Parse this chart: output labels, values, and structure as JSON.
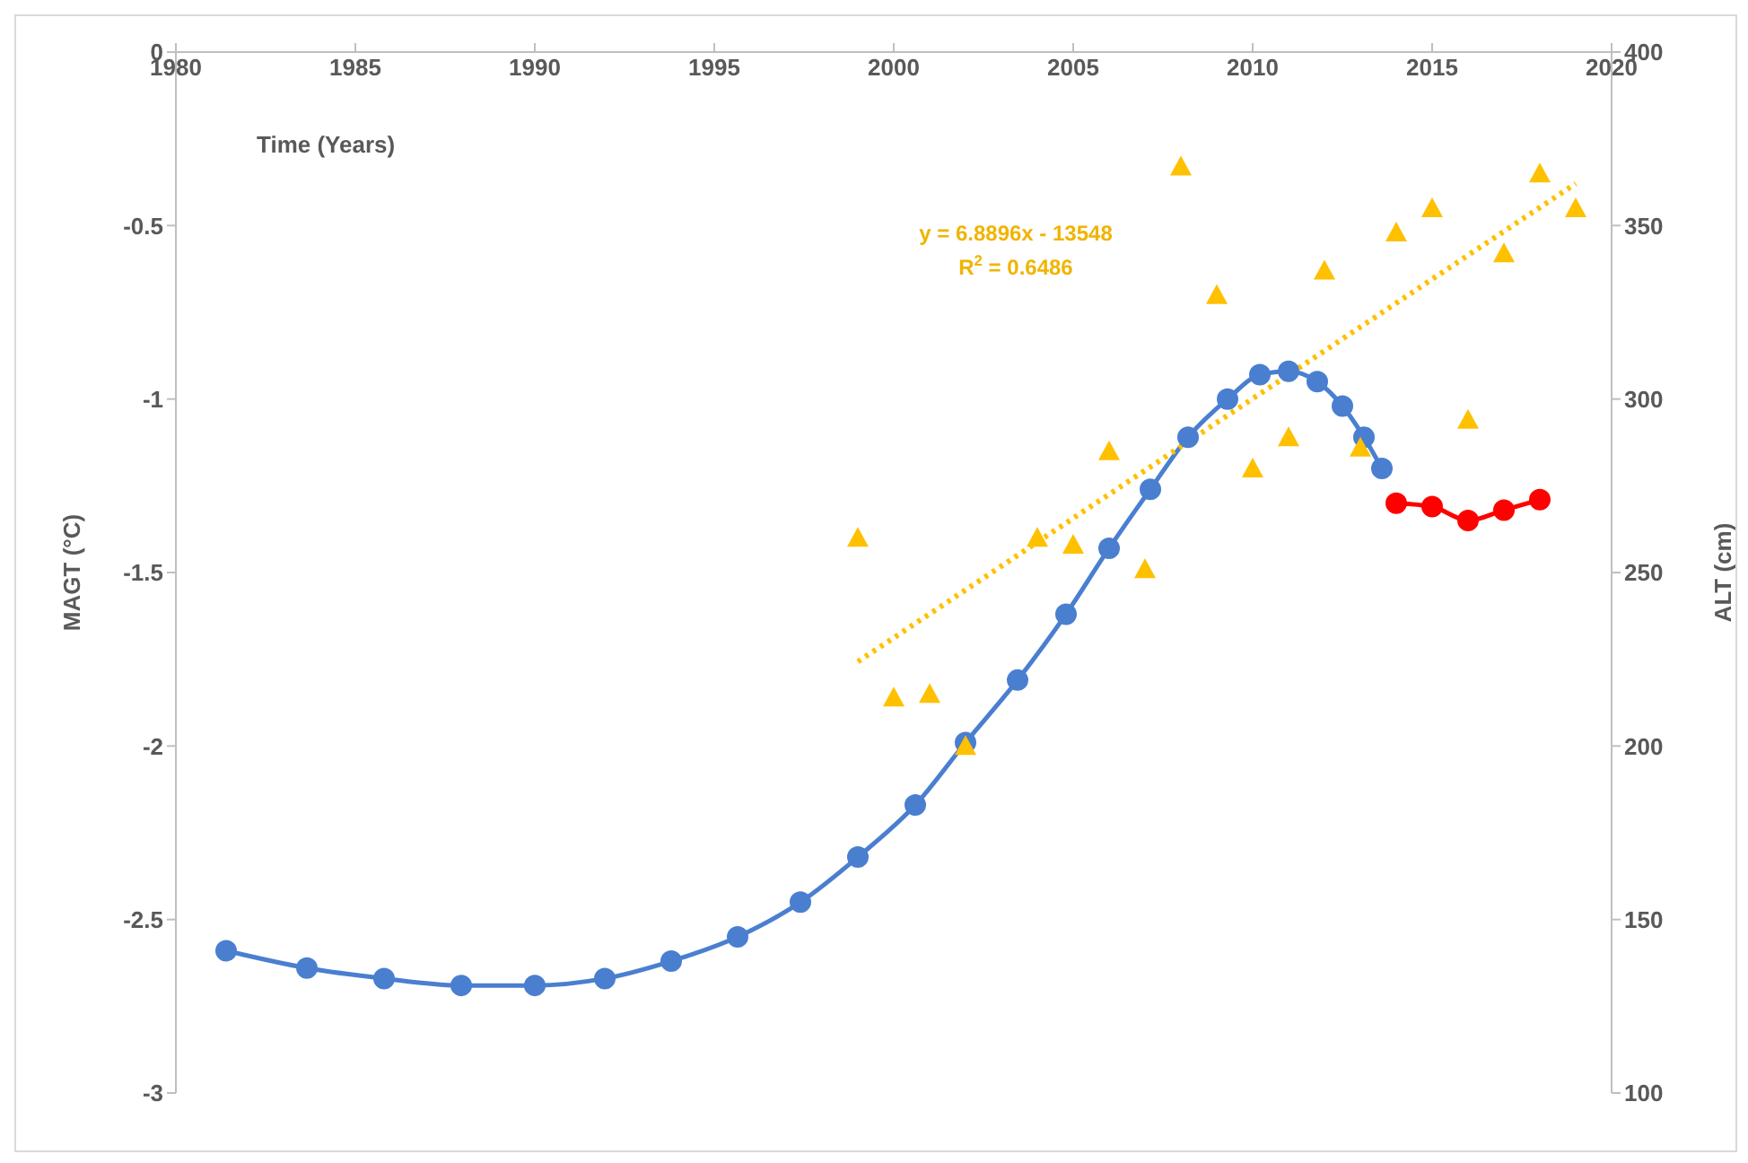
{
  "chart_data": {
    "type": "line",
    "xlabel": "Time (Years)",
    "ylabel": "MAGT (°C)",
    "y2label": "ALT (cm)",
    "xlim": [
      1980,
      2020
    ],
    "xticks": [
      1980,
      1985,
      1990,
      1995,
      2000,
      2005,
      2010,
      2015,
      2020
    ],
    "ylim": [
      -3,
      0
    ],
    "yticks": [
      -3,
      -2.5,
      -2,
      -1.5,
      -1,
      -0.5,
      0
    ],
    "y2lim": [
      100,
      400
    ],
    "y2ticks": [
      100,
      150,
      200,
      250,
      300,
      350,
      400
    ],
    "annotations": [
      "y = 6.8896x - 13548",
      "R$^{2}$ = 0.6486"
    ],
    "series": [
      {
        "color": "#4a7fd0",
        "marker": "circle",
        "x": [
          1981.4,
          1983.65,
          1985.8,
          1987.95,
          1990.0,
          1991.95,
          1993.8,
          1995.65,
          1997.4,
          1999.0,
          2000.6,
          2002.0,
          2003.45,
          2004.8,
          2006.0,
          2007.15,
          2008.2,
          2009.3,
          2010.2,
          2011.0,
          2011.8,
          2012.5,
          2013.1,
          2013.6
        ],
        "values": [
          -2.59,
          -2.64,
          -2.67,
          -2.69,
          -2.69,
          -2.67,
          -2.62,
          -2.55,
          -2.45,
          -2.32,
          -2.17,
          -1.99,
          -1.81,
          -1.62,
          -1.43,
          -1.26,
          -1.11,
          -1.0,
          -0.93,
          -0.92,
          -0.95,
          -1.02,
          -1.11,
          -1.2
        ]
      },
      {
        "color": "#ff0000",
        "marker": "circle",
        "x": [
          2014,
          2015,
          2016,
          2017,
          2018
        ],
        "values": [
          -1.3,
          -1.31,
          -1.35,
          -1.32,
          -1.29
        ]
      },
      {
        "type": "scatter",
        "axis": "y2",
        "color": "#ffc000",
        "marker": "triangle",
        "x": [
          1999,
          2000,
          2001,
          2002,
          2004,
          2005,
          2006,
          2007,
          2008,
          2009,
          2010,
          2011,
          2012,
          2013,
          2014,
          2015,
          2016,
          2017,
          2018,
          2019
        ],
        "values": [
          260,
          214,
          215,
          200,
          260,
          258,
          285,
          251,
          367,
          330,
          280,
          289,
          337,
          286,
          348,
          355,
          294,
          342,
          365,
          355
        ]
      },
      {
        "type": "line",
        "axis": "y2",
        "color": "#ffc000",
        "marker": "none",
        "line_style": "dotted",
        "x": [
          1999,
          2019
        ],
        "values": [
          224.3,
          362.1
        ]
      }
    ]
  }
}
